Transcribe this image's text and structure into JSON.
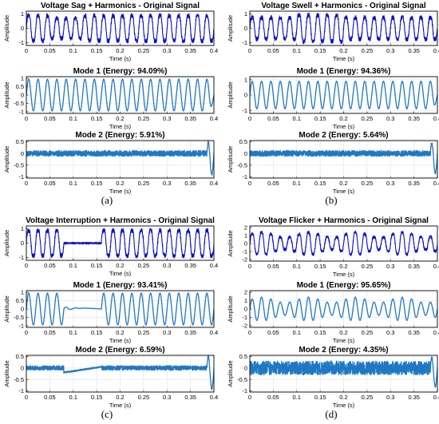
{
  "figure": {
    "captions": [
      "(a)",
      "(b)",
      "(c)",
      "(d)"
    ]
  },
  "chart_data": [
    {
      "id": "a1",
      "panel": "a",
      "type": "line",
      "kind": "sag-original",
      "title": "Voltage Sag + Harmonics - Original Signal",
      "xlabel": "Time (s)",
      "ylabel": "Amplitude",
      "xlim": [
        0,
        0.4
      ],
      "ylim": [
        -1.2,
        1.2
      ],
      "xticks": [
        "0",
        "0.05",
        "0.1",
        "0.15",
        "0.2",
        "0.25",
        "0.3",
        "0.35",
        "0.4"
      ],
      "yticks": [
        "-1",
        "0",
        "1"
      ],
      "fundamental_hz": 50,
      "signal_amplitude": 1.0,
      "sag_amplitude": 0.8,
      "disturbance_interval_s": [
        0.05,
        0.12
      ],
      "harmonic_noise": 0.15,
      "color": "#0a10c8"
    },
    {
      "id": "a2",
      "panel": "a",
      "type": "line",
      "kind": "mode1",
      "title": "Mode 1 (Energy: 94.09%)",
      "xlabel": "Time (s)",
      "ylabel": "Amplitude",
      "xlim": [
        0,
        0.4
      ],
      "ylim": [
        -1.1,
        1.1
      ],
      "xticks": [
        "0",
        "0.05",
        "0.1",
        "0.15",
        "0.2",
        "0.25",
        "0.3",
        "0.35",
        "0.4"
      ],
      "yticks": [
        "-1",
        "-0.5",
        "0",
        "0.5",
        "1"
      ],
      "fundamental_hz": 50,
      "signal_amplitude": 0.95,
      "energy_percent": 94.09,
      "color": "#1f78c4"
    },
    {
      "id": "a3",
      "panel": "a",
      "type": "line",
      "kind": "mode2",
      "title": "Mode 2 (Energy: 5.91%)",
      "xlabel": "Time (s)",
      "ylabel": "Amplitude",
      "xlim": [
        0,
        0.4
      ],
      "ylim": [
        -1.05,
        0.55
      ],
      "xticks": [
        "0",
        "0.05",
        "0.1",
        "0.15",
        "0.2",
        "0.25",
        "0.3",
        "0.35",
        "0.4"
      ],
      "yticks": [
        "-1",
        "-0.5",
        "0",
        "0.5"
      ],
      "noise_amplitude": 0.12,
      "end_transient": [
        0.5,
        -0.9
      ],
      "energy_percent": 5.91,
      "color": "#1f78c4"
    },
    {
      "id": "b1",
      "panel": "b",
      "type": "line",
      "kind": "swell-original",
      "title": "Voltage Swell + Harmonics - Original Signal",
      "xlabel": "Time (s)",
      "ylabel": "Amplitude",
      "xlim": [
        0,
        0.4
      ],
      "ylim": [
        -1.2,
        1.2
      ],
      "xticks": [
        "0",
        "0.05",
        "0.1",
        "0.15",
        "0.2",
        "0.25",
        "0.3",
        "0.35",
        "0.4"
      ],
      "yticks": [
        "-1",
        "0",
        "1"
      ],
      "fundamental_hz": 50,
      "signal_amplitude": 0.85,
      "swell_amplitude": 1.05,
      "disturbance_interval_s": [
        0.1,
        0.2
      ],
      "harmonic_noise": 0.15,
      "color": "#0a10c8"
    },
    {
      "id": "b2",
      "panel": "b",
      "type": "line",
      "kind": "mode1",
      "title": "Mode 1 (Energy: 94.36%)",
      "xlabel": "Time (s)",
      "ylabel": "Amplitude",
      "xlim": [
        0,
        0.4
      ],
      "ylim": [
        -1.2,
        1.2
      ],
      "xticks": [
        "0",
        "0.05",
        "0.1",
        "0.15",
        "0.2",
        "0.25",
        "0.3",
        "0.35",
        "0.4"
      ],
      "yticks": [
        "-1",
        "0",
        "1"
      ],
      "fundamental_hz": 50,
      "signal_amplitude": 0.9,
      "energy_percent": 94.36,
      "color": "#1f78c4"
    },
    {
      "id": "b3",
      "panel": "b",
      "type": "line",
      "kind": "mode2",
      "title": "Mode 2 (Energy: 5.64%)",
      "xlabel": "Time (s)",
      "ylabel": "Amplitude",
      "xlim": [
        0,
        0.4
      ],
      "ylim": [
        -1.05,
        0.55
      ],
      "xticks": [
        "0",
        "0.05",
        "0.1",
        "0.15",
        "0.2",
        "0.25",
        "0.3",
        "0.35",
        "0.4"
      ],
      "yticks": [
        "-1",
        "-0.5",
        "0",
        "0.5"
      ],
      "noise_amplitude": 0.12,
      "end_transient": [
        0.45,
        -0.85
      ],
      "energy_percent": 5.64,
      "color": "#1f78c4"
    },
    {
      "id": "c1",
      "panel": "c",
      "type": "line",
      "kind": "interruption-original",
      "title": "Voltage Interruption + Harmonics - Original Signal",
      "xlabel": "Time (s)",
      "ylabel": "Amplitude",
      "xlim": [
        0,
        0.4
      ],
      "ylim": [
        -1.2,
        1.2
      ],
      "xticks": [
        "0",
        "0.05",
        "0.1",
        "0.15",
        "0.2",
        "0.25",
        "0.3",
        "0.35",
        "0.4"
      ],
      "yticks": [
        "-1",
        "0",
        "1"
      ],
      "fundamental_hz": 50,
      "signal_amplitude": 1.0,
      "interruption_amplitude": 0.04,
      "disturbance_interval_s": [
        0.08,
        0.16
      ],
      "harmonic_noise": 0.15,
      "color": "#0a10c8"
    },
    {
      "id": "c2",
      "panel": "c",
      "type": "line",
      "kind": "mode1-interruption",
      "title": "Mode 1 (Energy: 93.41%)",
      "xlabel": "Time (s)",
      "ylabel": "Amplitude",
      "xlim": [
        0,
        0.4
      ],
      "ylim": [
        -1.1,
        1.1
      ],
      "xticks": [
        "0",
        "0.05",
        "0.1",
        "0.15",
        "0.2",
        "0.25",
        "0.3",
        "0.35",
        "0.4"
      ],
      "yticks": [
        "-1",
        "-0.5",
        "0",
        "0.5",
        "1"
      ],
      "fundamental_hz": 50,
      "signal_amplitude": 0.95,
      "disturbance_interval_s": [
        0.08,
        0.16
      ],
      "energy_percent": 93.41,
      "color": "#1f78c4"
    },
    {
      "id": "c3",
      "panel": "c",
      "type": "line",
      "kind": "mode2-interruption",
      "title": "Mode 2 (Energy: 6.59%)",
      "xlabel": "Time (s)",
      "ylabel": "Amplitude",
      "xlim": [
        0,
        0.4
      ],
      "ylim": [
        -1.05,
        0.55
      ],
      "xticks": [
        "0",
        "0.05",
        "0.1",
        "0.15",
        "0.2",
        "0.25",
        "0.3",
        "0.35",
        "0.4"
      ],
      "yticks": [
        "-1",
        "-0.5",
        "0",
        "0.5"
      ],
      "noise_amplitude": 0.1,
      "end_transient": [
        0.5,
        -0.9
      ],
      "disturbance_interval_s": [
        0.08,
        0.16
      ],
      "energy_percent": 6.59,
      "color": "#1f78c4"
    },
    {
      "id": "d1",
      "panel": "d",
      "type": "line",
      "kind": "flicker-original",
      "title": "Voltage Flicker + Harmonics - Original Signal",
      "xlabel": "Time (s)",
      "ylabel": "Amplitude",
      "xlim": [
        0,
        0.4
      ],
      "ylim": [
        -2.2,
        2.2
      ],
      "xticks": [
        "0",
        "0.05",
        "0.1",
        "0.15",
        "0.2",
        "0.25",
        "0.3",
        "0.35",
        "0.4"
      ],
      "yticks": [
        "-2",
        "-1",
        "0",
        "1",
        "2"
      ],
      "fundamental_hz": 50,
      "signal_amplitude": 1.2,
      "flicker_depth": 0.3,
      "flicker_hz": 10,
      "harmonic_noise": 0.18,
      "color": "#0a10c8"
    },
    {
      "id": "d2",
      "panel": "d",
      "type": "line",
      "kind": "mode1-flicker",
      "title": "Mode 1 (Energy: 95.65%)",
      "xlabel": "Time (s)",
      "ylabel": "Amplitude",
      "xlim": [
        0,
        0.4
      ],
      "ylim": [
        -2.2,
        2.2
      ],
      "xticks": [
        "0",
        "0.05",
        "0.1",
        "0.15",
        "0.2",
        "0.25",
        "0.3",
        "0.35",
        "0.4"
      ],
      "yticks": [
        "-2",
        "-1",
        "0",
        "1",
        "2"
      ],
      "fundamental_hz": 50,
      "signal_amplitude": 1.1,
      "flicker_depth": 0.3,
      "flicker_hz": 10,
      "energy_percent": 95.65,
      "color": "#1f78c4"
    },
    {
      "id": "d3",
      "panel": "d",
      "type": "line",
      "kind": "mode2",
      "title": "Mode 2 (Energy: 4.35%)",
      "xlabel": "Time (s)",
      "ylabel": "Amplitude",
      "xlim": [
        0,
        0.4
      ],
      "ylim": [
        -1.05,
        0.55
      ],
      "xticks": [
        "0",
        "0.05",
        "0.1",
        "0.15",
        "0.2",
        "0.25",
        "0.3",
        "0.35",
        "0.4"
      ],
      "yticks": [
        "-1",
        "-0.5",
        "0",
        "0.5"
      ],
      "noise_amplitude": 0.3,
      "end_transient": [
        0.45,
        -0.8
      ],
      "energy_percent": 4.35,
      "color": "#1f78c4"
    }
  ]
}
